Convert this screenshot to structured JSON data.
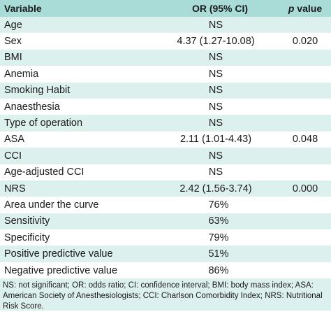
{
  "header": {
    "variable": "Variable",
    "or": "OR (95% CI)",
    "p_italic": "p",
    "p_rest": " value"
  },
  "rows": [
    {
      "variable": "Age",
      "or": "NS",
      "p": ""
    },
    {
      "variable": "Sex",
      "or": "4.37 (1.27-10.08)",
      "p": "0.020"
    },
    {
      "variable": "BMI",
      "or": "NS",
      "p": ""
    },
    {
      "variable": "Anemia",
      "or": "NS",
      "p": ""
    },
    {
      "variable": "Smoking Habit",
      "or": "NS",
      "p": ""
    },
    {
      "variable": "Anaesthesia",
      "or": "NS",
      "p": ""
    },
    {
      "variable": "Type of operation",
      "or": "NS",
      "p": ""
    },
    {
      "variable": "ASA",
      "or": "2.11 (1.01-4.43)",
      "p": "0.048"
    },
    {
      "variable": "CCI",
      "or": "NS",
      "p": ""
    },
    {
      "variable": "Age-adjusted CCI",
      "or": "NS",
      "p": ""
    },
    {
      "variable": "NRS",
      "or": "2.42 (1.56-3.74)",
      "p": "0.000"
    }
  ],
  "summary": [
    {
      "label": "Area under the curve",
      "value": "76%"
    },
    {
      "label": "Sensitivity",
      "value": "63%"
    },
    {
      "label": "Specificity",
      "value": "79%"
    },
    {
      "label": "Positive predictive value",
      "value": "51%"
    },
    {
      "label": "Negative predictive value",
      "value": "86%"
    }
  ],
  "footnote": "NS: not significant; OR: odds ratio; CI: confidence interval; BMI: body mass index; ASA: American Society of Anesthesiologists; CCI: Charlson Comorbidity Index; NRS: Nutritional Risk Score.",
  "colors": {
    "header_bg": "#a9dcd6",
    "shaded_row": "#dcf0ee",
    "white_row": "#ffffff"
  }
}
